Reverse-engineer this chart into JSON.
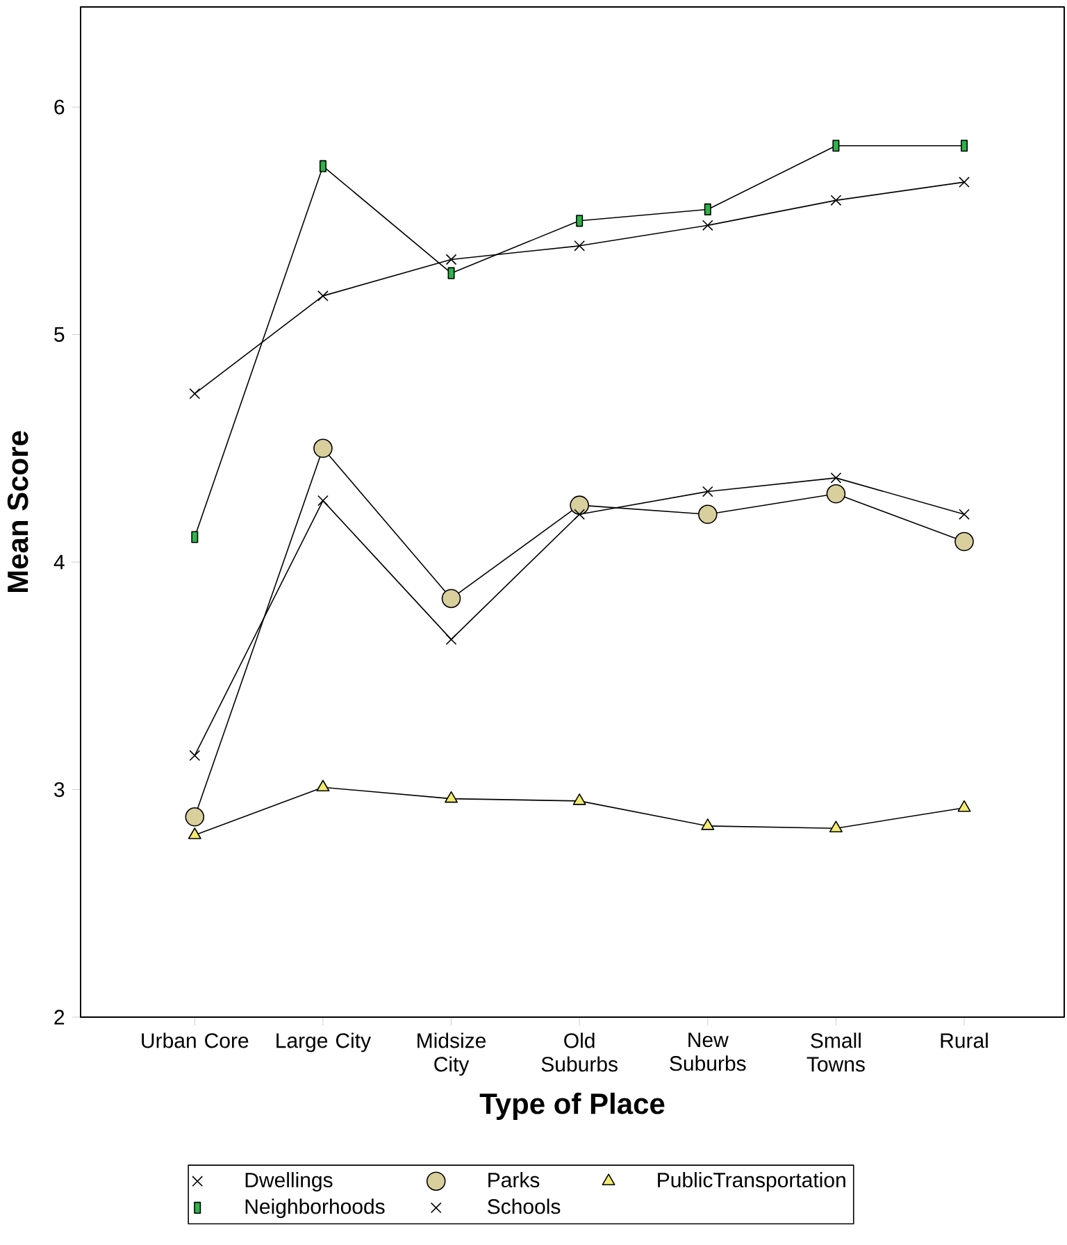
{
  "chart_data": {
    "type": "line",
    "xlabel": "Type of Place",
    "ylabel": "Mean Score",
    "categories": [
      "Urban Core",
      "Large City",
      "Midsize City",
      "Old Suburbs",
      "New Suburbs",
      "Small Towns",
      "Rural"
    ],
    "ylim": [
      2,
      6.44
    ],
    "yticks": [
      2,
      3,
      4,
      5,
      6
    ],
    "legend": "bottom",
    "grid": false,
    "series": [
      {
        "name": "Dwellings",
        "color": "#000000",
        "marker": "cross",
        "values": [
          4.74,
          5.17,
          5.33,
          5.39,
          5.48,
          5.59,
          5.67
        ]
      },
      {
        "name": "Neighborhoods",
        "color": "#2db34a",
        "marker": "square",
        "values": [
          4.11,
          5.74,
          5.27,
          5.5,
          5.55,
          5.83,
          5.83
        ]
      },
      {
        "name": "Parks",
        "color": "#d8cf9c",
        "marker": "circle",
        "values": [
          2.88,
          4.5,
          3.84,
          4.25,
          4.21,
          4.3,
          4.09
        ]
      },
      {
        "name": "Schools",
        "color": "#000000",
        "marker": "cross",
        "values": [
          3.15,
          4.27,
          3.66,
          4.21,
          4.31,
          4.37,
          4.21
        ]
      },
      {
        "name": "PublicTransportation",
        "color": "#f2ea72",
        "marker": "triangle",
        "values": [
          2.8,
          3.01,
          2.96,
          2.95,
          2.84,
          2.83,
          2.92
        ]
      }
    ]
  }
}
